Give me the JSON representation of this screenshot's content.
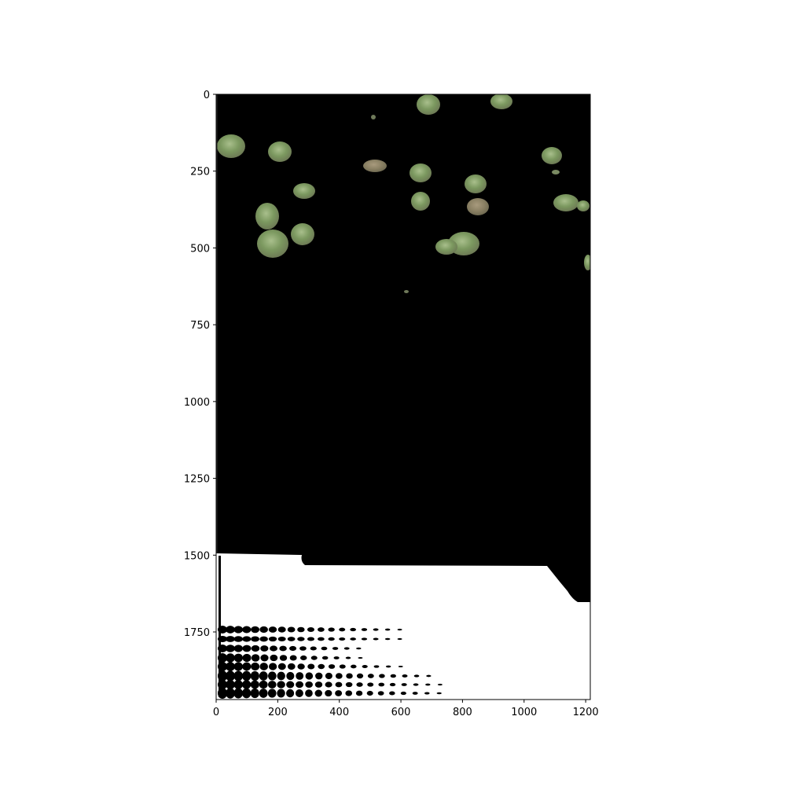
{
  "figure": {
    "kind": "image plot",
    "colors": {
      "background": "#ffffff",
      "mask_black": "#000000",
      "tree_canopy": "#7a9a62",
      "tree_canopy_light": "#9bb281",
      "tree_canopy_brown": "#8a7a62",
      "axis": "#000000"
    }
  },
  "chart_data": {
    "type": "image",
    "xlim": [
      0,
      1215
    ],
    "ylim": [
      1970,
      0
    ],
    "x_ticks": [
      {
        "value": 0,
        "label": "0"
      },
      {
        "value": 200,
        "label": "200"
      },
      {
        "value": 400,
        "label": "400"
      },
      {
        "value": 600,
        "label": "600"
      },
      {
        "value": 800,
        "label": "800"
      },
      {
        "value": 1000,
        "label": "1000"
      },
      {
        "value": 1200,
        "label": "1200"
      }
    ],
    "y_ticks": [
      {
        "value": 0,
        "label": "0"
      },
      {
        "value": 250,
        "label": "250"
      },
      {
        "value": 500,
        "label": "500"
      },
      {
        "value": 750,
        "label": "750"
      },
      {
        "value": 1000,
        "label": "1000"
      },
      {
        "value": 1250,
        "label": "1250"
      },
      {
        "value": 1500,
        "label": "1500"
      },
      {
        "value": 1750,
        "label": "1750"
      }
    ],
    "title": "",
    "xlabel": "",
    "ylabel": "",
    "grid": false
  }
}
